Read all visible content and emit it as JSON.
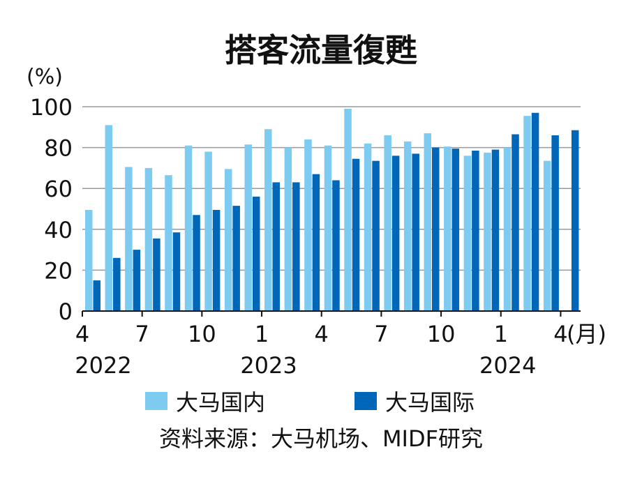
{
  "chart_data": {
    "type": "bar",
    "title": "搭客流量復甦",
    "ylabel": "(%)",
    "xlabel_unit": "(月)",
    "ylim": [
      0,
      100
    ],
    "yticks": [
      0,
      20,
      40,
      60,
      80,
      100
    ],
    "grid": true,
    "legend_placement": "bottom",
    "categories": [
      "2022-04",
      "2022-05",
      "2022-06",
      "2022-07",
      "2022-08",
      "2022-09",
      "2022-10",
      "2022-11",
      "2022-12",
      "2023-01",
      "2023-02",
      "2023-03",
      "2023-04",
      "2023-05",
      "2023-06",
      "2023-07",
      "2023-08",
      "2023-09",
      "2023-10",
      "2023-11",
      "2023-12",
      "2024-01",
      "2024-02",
      "2024-03",
      "2024-04"
    ],
    "xtick_labels": [
      "4",
      "7",
      "10",
      "1",
      "4",
      "7",
      "10",
      "1",
      "4"
    ],
    "year_labels": [
      "2022",
      "2023",
      "2024"
    ],
    "series": [
      {
        "name": "大马国内",
        "color": "#7ecbf2",
        "values": [
          49.5,
          91,
          70.5,
          70,
          66.5,
          81,
          78,
          69.5,
          81.5,
          89,
          80,
          84,
          81,
          99,
          82,
          86,
          83,
          87,
          80.5,
          76,
          77.5,
          80,
          95.5,
          73.5,
          null
        ]
      },
      {
        "name": "大马国际",
        "color": "#0066b8",
        "values": [
          15,
          26,
          30,
          35.5,
          38.5,
          47,
          49.5,
          51.5,
          56,
          63,
          63,
          67,
          64,
          74.5,
          73.5,
          76,
          77,
          80,
          79.5,
          78.5,
          79,
          86.5,
          97,
          86,
          88.5
        ]
      }
    ],
    "source": "资料来源：大马机场、MIDF研究"
  }
}
